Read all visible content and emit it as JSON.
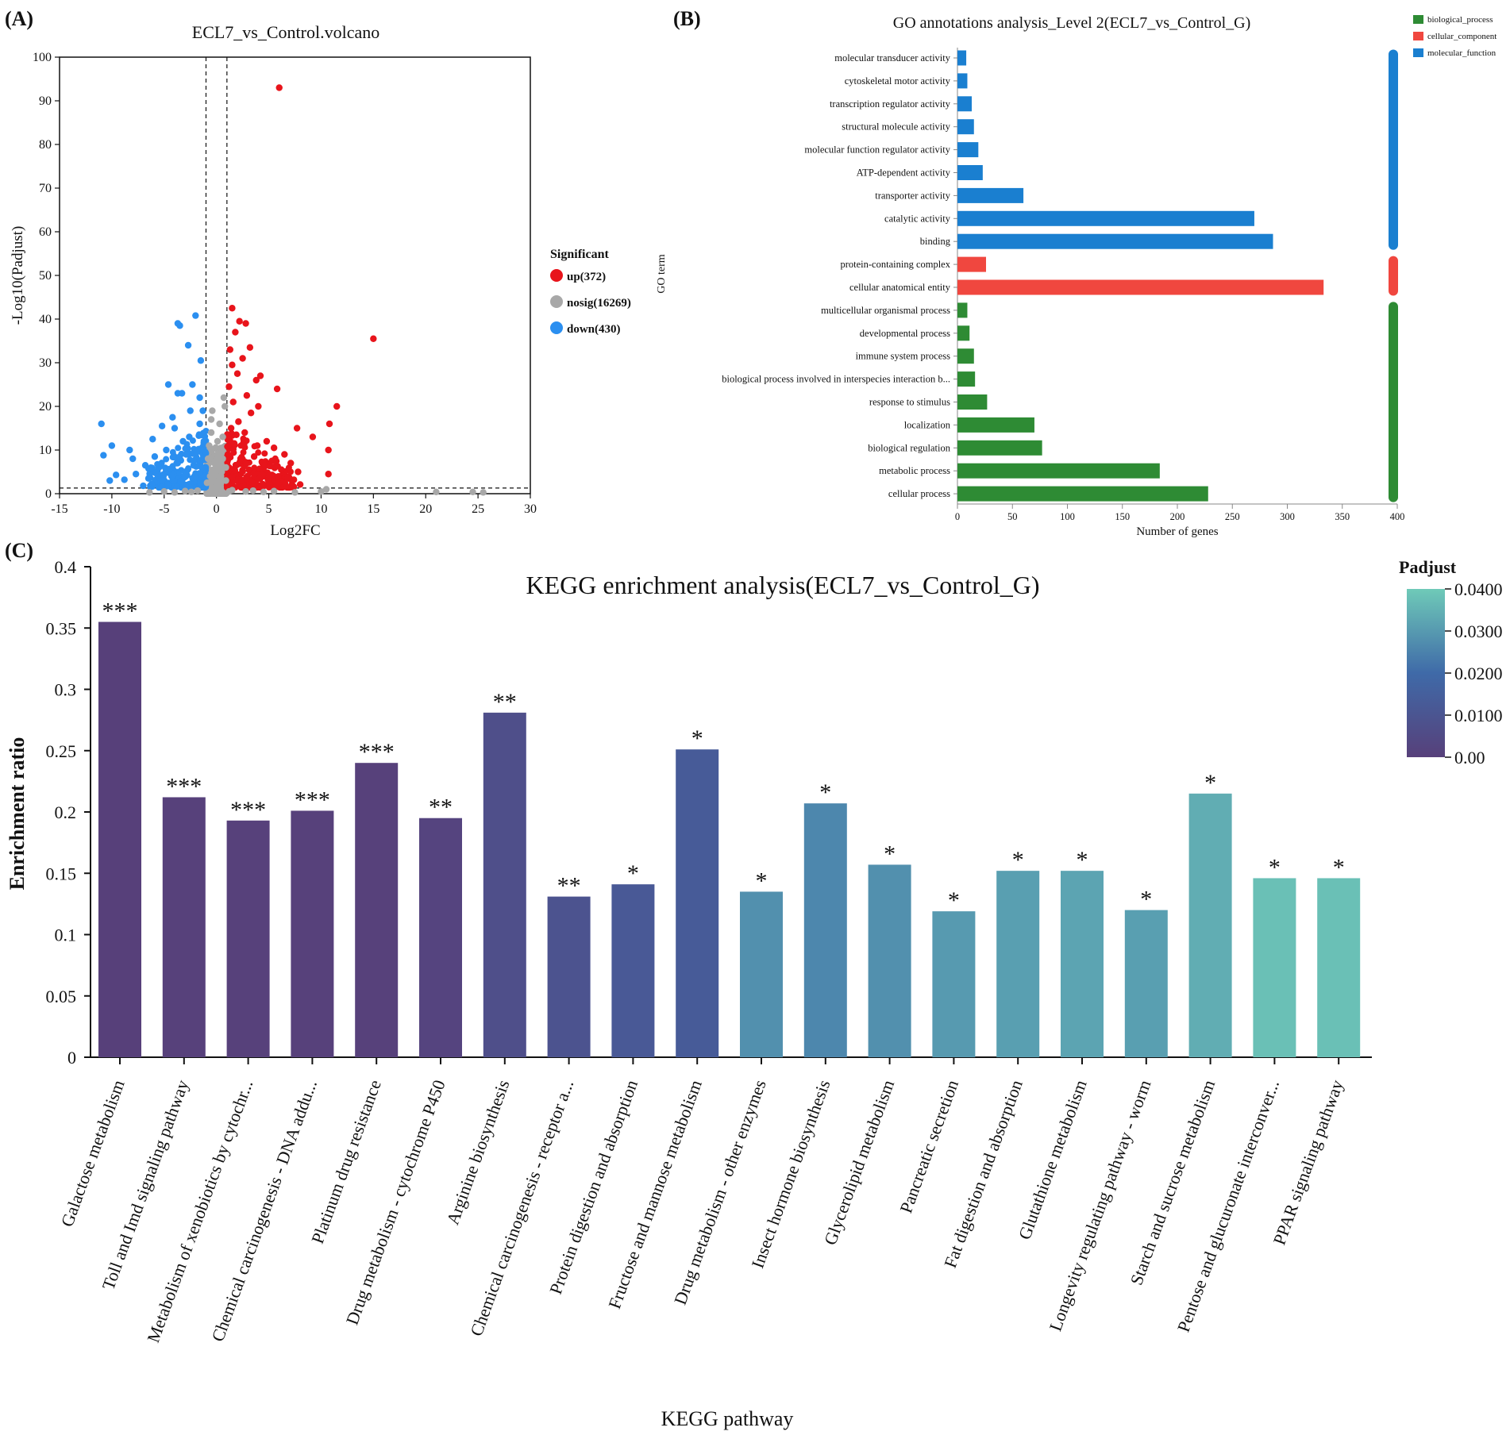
{
  "panels": {
    "a_label": "(A)",
    "b_label": "(B)",
    "c_label": "(C)"
  },
  "colors": {
    "up": "#e8141b",
    "nosig": "#a8a8a8",
    "down": "#2b8ff0",
    "biological_process": "#2e8b34",
    "cellular_component": "#f0473f",
    "molecular_function": "#1a7fd0",
    "sig_star": "#e02020",
    "grad_low": "#57407a",
    "grad_mid": "#3f6aa8",
    "grad_high": "#6fcab8"
  },
  "chart_data": [
    {
      "id": "volcano",
      "type": "scatter",
      "title": "ECL7_vs_Control.volcano",
      "xlabel": "Log2FC",
      "ylabel": "-Log10(Padjust)",
      "xlim": [
        -15,
        30
      ],
      "ylim": [
        0,
        100
      ],
      "xticks": [
        -15,
        -10,
        -5,
        0,
        5,
        10,
        15,
        20,
        25,
        30
      ],
      "yticks": [
        0,
        10,
        20,
        30,
        40,
        50,
        60,
        70,
        80,
        90,
        100
      ],
      "thresholds": {
        "log2fc": [
          -1,
          1
        ],
        "padjust_log10": 1.3
      },
      "legend_title": "Significant",
      "legend": [
        {
          "key": "up",
          "label": "up(372)"
        },
        {
          "key": "nosig",
          "label": "nosig(16269)"
        },
        {
          "key": "down",
          "label": "down(430)"
        }
      ],
      "series": [
        {
          "name": "up",
          "points": [
            [
              6,
              93
            ],
            [
              15,
              35.5
            ],
            [
              1.5,
              42.5
            ],
            [
              2.2,
              39.5
            ],
            [
              2.8,
              39
            ],
            [
              1.8,
              37
            ],
            [
              3.2,
              33.5
            ],
            [
              2.5,
              31
            ],
            [
              4.2,
              27
            ],
            [
              3.8,
              26
            ],
            [
              5.8,
              24
            ],
            [
              4,
              20
            ],
            [
              11.5,
              20
            ],
            [
              2.9,
              22.5
            ],
            [
              10.8,
              16
            ],
            [
              7.7,
              15
            ],
            [
              9.2,
              13
            ],
            [
              10.7,
              10
            ],
            [
              10.7,
              4.5
            ],
            [
              1.3,
              33
            ],
            [
              1.5,
              29.5
            ],
            [
              2,
              27.5
            ],
            [
              1.2,
              24.5
            ],
            [
              1.6,
              21
            ],
            [
              3.3,
              18.5
            ],
            [
              2.1,
              16.5
            ],
            [
              4.8,
              12
            ],
            [
              5.5,
              10.5
            ],
            [
              6.5,
              9
            ],
            [
              7.1,
              7
            ],
            [
              7.8,
              5
            ],
            [
              6.8,
              3.5
            ],
            [
              5.9,
              2.5
            ],
            [
              4.6,
              6.5
            ],
            [
              3.6,
              8.5
            ],
            [
              2.6,
              11
            ],
            [
              1.9,
              13.5
            ],
            [
              1.4,
              15
            ],
            [
              1.7,
              11.5
            ],
            [
              2.3,
              8
            ],
            [
              3.1,
              5.5
            ],
            [
              4.1,
              3.5
            ],
            [
              5.1,
              2.2
            ],
            [
              1.2,
              6
            ],
            [
              1.5,
              3.8
            ],
            [
              2.4,
              3
            ],
            [
              3.4,
              2.6
            ],
            [
              6.2,
              5.5
            ],
            [
              7.4,
              3.2
            ],
            [
              8,
              2.1
            ],
            [
              1.1,
              9
            ],
            [
              2.7,
              14
            ],
            [
              3.9,
              11
            ],
            [
              5.3,
              7.5
            ]
          ]
        },
        {
          "name": "down",
          "points": [
            [
              -2,
              40.8
            ],
            [
              -3.5,
              38.5
            ],
            [
              -3.7,
              39
            ],
            [
              -2.7,
              34
            ],
            [
              -1.5,
              30.5
            ],
            [
              -2.3,
              25
            ],
            [
              -4.6,
              25
            ],
            [
              -3.7,
              23
            ],
            [
              -3.3,
              23
            ],
            [
              -1.6,
              22
            ],
            [
              -2.5,
              19
            ],
            [
              -4.2,
              17.5
            ],
            [
              -5.2,
              15.5
            ],
            [
              -11,
              16
            ],
            [
              -10,
              11
            ],
            [
              -10.8,
              8.8
            ],
            [
              -8.3,
              10
            ],
            [
              -8,
              8
            ],
            [
              -7.7,
              4.5
            ],
            [
              -6.5,
              3.5
            ],
            [
              -9.6,
              4.3
            ],
            [
              -10.2,
              3
            ],
            [
              -6.1,
              12.5
            ],
            [
              -4,
              15
            ],
            [
              -3.2,
              12
            ],
            [
              -2.6,
              13
            ],
            [
              -1.9,
              9.5
            ],
            [
              -1.4,
              6
            ],
            [
              -2.2,
              7.5
            ],
            [
              -3,
              5
            ],
            [
              -4.3,
              4
            ],
            [
              -5.2,
              3
            ],
            [
              -6.2,
              2.2
            ],
            [
              -7,
              1.8
            ],
            [
              -1.2,
              12
            ],
            [
              -1.6,
              16
            ],
            [
              -2.9,
              9
            ],
            [
              -3.8,
              7
            ],
            [
              -5.5,
              6
            ],
            [
              -1.3,
              19
            ],
            [
              -4.8,
              10
            ],
            [
              -2.1,
              4
            ],
            [
              -1.5,
              2.5
            ],
            [
              -3.4,
              2.8
            ],
            [
              -4.6,
              2
            ],
            [
              -8.8,
              3.2
            ],
            [
              -6.8,
              6.5
            ],
            [
              -5.9,
              8.5
            ]
          ]
        },
        {
          "name": "nosig",
          "points": [
            [
              0.3,
              16
            ],
            [
              0.6,
              13
            ],
            [
              -0.4,
              19
            ],
            [
              0.8,
              20
            ],
            [
              -0.7,
              11
            ],
            [
              0.2,
              9
            ],
            [
              -0.2,
              7
            ],
            [
              0.5,
              5
            ],
            [
              -0.6,
              4
            ],
            [
              0.9,
              3
            ],
            [
              -0.9,
              2.5
            ],
            [
              0.1,
              2
            ],
            [
              0.4,
              1.2
            ],
            [
              -0.3,
              1
            ],
            [
              1.5,
              0.8
            ],
            [
              -1.8,
              0.7
            ],
            [
              2.8,
              0.5
            ],
            [
              -3,
              0.6
            ],
            [
              4.5,
              0.4
            ],
            [
              -5,
              0.5
            ],
            [
              -6.4,
              0.3
            ],
            [
              7.5,
              0.3
            ],
            [
              10,
              0.5
            ],
            [
              10.5,
              1
            ],
            [
              21,
              0.4
            ],
            [
              24.5,
              0.4
            ],
            [
              25.5,
              0.3
            ],
            [
              -0.5,
              14
            ],
            [
              0.7,
              22
            ],
            [
              0.1,
              12
            ],
            [
              -0.8,
              8
            ],
            [
              0.6,
              8
            ],
            [
              -0.1,
              5
            ],
            [
              0.3,
              3.5
            ],
            [
              1.2,
              0.5
            ],
            [
              -2.4,
              0.4
            ],
            [
              3.5,
              0.7
            ],
            [
              5.5,
              0.6
            ],
            [
              -4,
              0.3
            ],
            [
              0.9,
              6
            ],
            [
              -0.5,
              17
            ]
          ]
        }
      ]
    },
    {
      "id": "go",
      "type": "bar",
      "orientation": "horizontal",
      "title": "GO annotations analysis_Level 2(ECL7_vs_Control_G)",
      "xlabel": "Number of genes",
      "ylabel": "GO term",
      "xlim": [
        0,
        400
      ],
      "xticks": [
        0,
        50,
        100,
        150,
        200,
        250,
        300,
        350,
        400
      ],
      "legend": [
        {
          "key": "biological_process",
          "label": "biological_process"
        },
        {
          "key": "cellular_component",
          "label": "cellular_component"
        },
        {
          "key": "molecular_function",
          "label": "molecular_function"
        }
      ],
      "categories": [
        {
          "label": "molecular transducer activity",
          "value": 8,
          "group": "molecular_function"
        },
        {
          "label": "cytoskeletal motor activity",
          "value": 9,
          "group": "molecular_function"
        },
        {
          "label": "transcription regulator activity",
          "value": 13,
          "group": "molecular_function"
        },
        {
          "label": "structural molecule activity",
          "value": 15,
          "group": "molecular_function"
        },
        {
          "label": "molecular function regulator activity",
          "value": 19,
          "group": "molecular_function"
        },
        {
          "label": "ATP-dependent activity",
          "value": 23,
          "group": "molecular_function"
        },
        {
          "label": "transporter activity",
          "value": 60,
          "group": "molecular_function"
        },
        {
          "label": "catalytic activity",
          "value": 270,
          "group": "molecular_function"
        },
        {
          "label": "binding",
          "value": 287,
          "group": "molecular_function"
        },
        {
          "label": "protein-containing complex",
          "value": 26,
          "group": "cellular_component"
        },
        {
          "label": "cellular anatomical entity",
          "value": 333,
          "group": "cellular_component"
        },
        {
          "label": "multicellular organismal process",
          "value": 9,
          "group": "biological_process"
        },
        {
          "label": "developmental process",
          "value": 11,
          "group": "biological_process"
        },
        {
          "label": "immune system process",
          "value": 15,
          "group": "biological_process"
        },
        {
          "label": "biological process involved in interspecies interaction b...",
          "value": 16,
          "group": "biological_process"
        },
        {
          "label": "response to stimulus",
          "value": 27,
          "group": "biological_process"
        },
        {
          "label": "localization",
          "value": 70,
          "group": "biological_process"
        },
        {
          "label": "biological regulation",
          "value": 77,
          "group": "biological_process"
        },
        {
          "label": "metabolic process",
          "value": 184,
          "group": "biological_process"
        },
        {
          "label": "cellular process",
          "value": 228,
          "group": "biological_process"
        }
      ]
    },
    {
      "id": "kegg",
      "type": "bar",
      "title": "KEGG enrichment analysis(ECL7_vs_Control_G)",
      "xlabel": "KEGG pathway",
      "ylabel": "Enrichment ratio",
      "ylim": [
        0,
        0.4
      ],
      "yticks": [
        "0",
        "0.05",
        "0.1",
        "0.15",
        "0.2",
        "0.25",
        "0.3",
        "0.35",
        "0.4"
      ],
      "colorbar": {
        "title": "Padjust",
        "range": [
          0,
          0.04
        ],
        "ticks": [
          {
            "value": 0.04,
            "label": "0.0400"
          },
          {
            "value": 0.03,
            "label": "0.0300"
          },
          {
            "value": 0.02,
            "label": "0.0200"
          },
          {
            "value": 0.01,
            "label": "0.0100"
          },
          {
            "value": 0,
            "label": "0.00"
          }
        ]
      },
      "bars": [
        {
          "category": "Galactose metabolism",
          "value": 0.355,
          "padjust": 0.0002,
          "sig": "***"
        },
        {
          "category": "Toll and Imd signaling pathway",
          "value": 0.212,
          "padjust": 0.0003,
          "sig": "***"
        },
        {
          "category": "Metabolism of xenobiotics by cytochr...",
          "value": 0.193,
          "padjust": 0.0004,
          "sig": "***"
        },
        {
          "category": "Chemical carcinogenesis - DNA addu...",
          "value": 0.201,
          "padjust": 0.0004,
          "sig": "***"
        },
        {
          "category": "Platinum drug resistance",
          "value": 0.24,
          "padjust": 0.0004,
          "sig": "***"
        },
        {
          "category": "Drug metabolism - cytochrome P450",
          "value": 0.195,
          "padjust": 0.002,
          "sig": "**"
        },
        {
          "category": "Arginine biosynthesis",
          "value": 0.281,
          "padjust": 0.007,
          "sig": "**"
        },
        {
          "category": "Chemical carcinogenesis - receptor a...",
          "value": 0.131,
          "padjust": 0.009,
          "sig": "**"
        },
        {
          "category": "Protein digestion and absorption",
          "value": 0.141,
          "padjust": 0.012,
          "sig": "*"
        },
        {
          "category": "Fructose and mannose metabolism",
          "value": 0.251,
          "padjust": 0.013,
          "sig": "*"
        },
        {
          "category": "Drug metabolism - other enzymes",
          "value": 0.135,
          "padjust": 0.028,
          "sig": "*"
        },
        {
          "category": "Insect hormone biosynthesis",
          "value": 0.207,
          "padjust": 0.026,
          "sig": "*"
        },
        {
          "category": "Glycerolipid metabolism",
          "value": 0.157,
          "padjust": 0.028,
          "sig": "*"
        },
        {
          "category": "Pancreatic secretion",
          "value": 0.119,
          "padjust": 0.03,
          "sig": "*"
        },
        {
          "category": "Fat digestion and absorption",
          "value": 0.152,
          "padjust": 0.031,
          "sig": "*"
        },
        {
          "category": "Glutathione metabolism",
          "value": 0.152,
          "padjust": 0.032,
          "sig": "*"
        },
        {
          "category": "Longevity regulating pathway - worm",
          "value": 0.12,
          "padjust": 0.031,
          "sig": "*"
        },
        {
          "category": "Starch and sucrose metabolism",
          "value": 0.215,
          "padjust": 0.034,
          "sig": "*"
        },
        {
          "category": "Pentose and glucuronate interconver...",
          "value": 0.146,
          "padjust": 0.038,
          "sig": "*"
        },
        {
          "category": "PPAR signaling pathway",
          "value": 0.146,
          "padjust": 0.038,
          "sig": "*"
        }
      ]
    }
  ]
}
